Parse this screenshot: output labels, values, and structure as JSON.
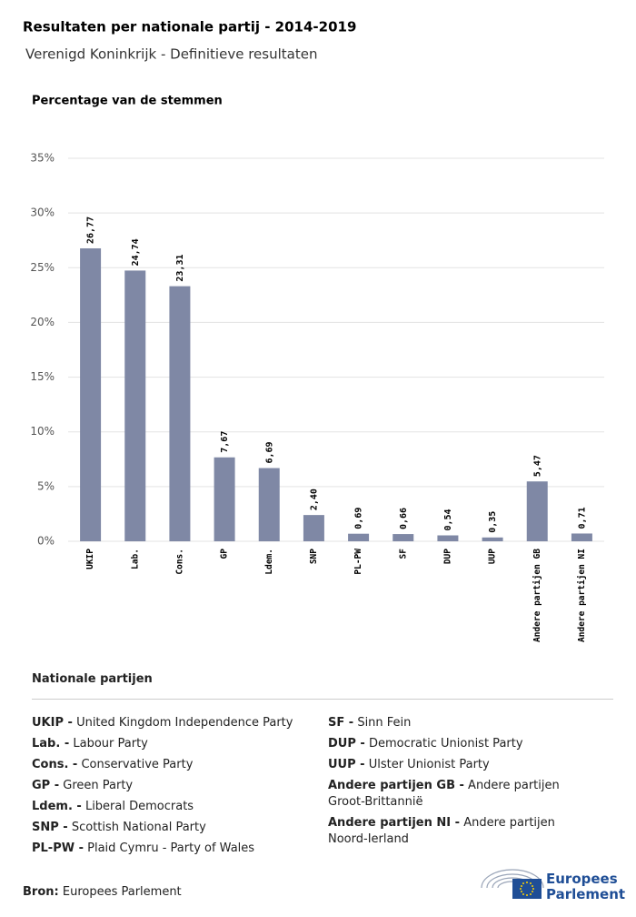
{
  "chart_data": {
    "type": "bar",
    "title": "Resultaten per nationale partij - 2014-2019",
    "subtitle": "Verenigd Koninkrijk - Definitieve resultaten",
    "y_label": "Percentage van de stemmen",
    "categories": [
      "UKIP",
      "Lab.",
      "Cons.",
      "GP",
      "Ldem.",
      "SNP",
      "PL-PW",
      "SF",
      "DUP",
      "UUP",
      "Andere partijen GB",
      "Andere partijen NI"
    ],
    "values": [
      26.77,
      24.74,
      23.31,
      7.67,
      6.69,
      2.4,
      0.69,
      0.66,
      0.54,
      0.35,
      5.47,
      0.71
    ],
    "value_labels": [
      "26,77",
      "24,74",
      "23,31",
      "7,67",
      "6,69",
      "2,40",
      "0,69",
      "0,66",
      "0,54",
      "0,35",
      "5,47",
      "0,71"
    ],
    "color": "#7f88a5",
    "ylim": [
      0,
      35
    ],
    "yticks": [
      {
        "value": 0,
        "label": "0%"
      },
      {
        "value": 5,
        "label": "5%"
      },
      {
        "value": 10,
        "label": "10%"
      },
      {
        "value": 15,
        "label": "15%"
      },
      {
        "value": 20,
        "label": "20%"
      },
      {
        "value": 25,
        "label": "25%"
      },
      {
        "value": 30,
        "label": "30%"
      },
      {
        "value": 35,
        "label": "35%"
      }
    ],
    "grid": true
  },
  "legend": {
    "title": "Nationale partijen",
    "left": [
      {
        "abbr": "UKIP -",
        "desc": "United Kingdom Independence Party"
      },
      {
        "abbr": "Lab. -",
        "desc": "Labour Party"
      },
      {
        "abbr": "Cons. -",
        "desc": "Conservative Party"
      },
      {
        "abbr": "GP -",
        "desc": "Green Party"
      },
      {
        "abbr": "Ldem. -",
        "desc": "Liberal Democrats"
      },
      {
        "abbr": "SNP -",
        "desc": "Scottish National Party"
      },
      {
        "abbr": "PL-PW -",
        "desc": "Plaid Cymru - Party of Wales"
      }
    ],
    "right": [
      {
        "abbr": "SF -",
        "desc": "Sinn Fein"
      },
      {
        "abbr": "DUP -",
        "desc": "Democratic Unionist Party"
      },
      {
        "abbr": "UUP -",
        "desc": "Ulster Unionist Party"
      },
      {
        "abbr": "Andere partijen GB -",
        "desc": "Andere partijen Groot-Brittannië"
      },
      {
        "abbr": "Andere partijen NI -",
        "desc": "Andere partijen Noord-Ierland"
      }
    ]
  },
  "footer": {
    "source_label": "Bron:",
    "source": "Europees Parlement"
  },
  "logo": [
    "Europees",
    "Parlement"
  ]
}
